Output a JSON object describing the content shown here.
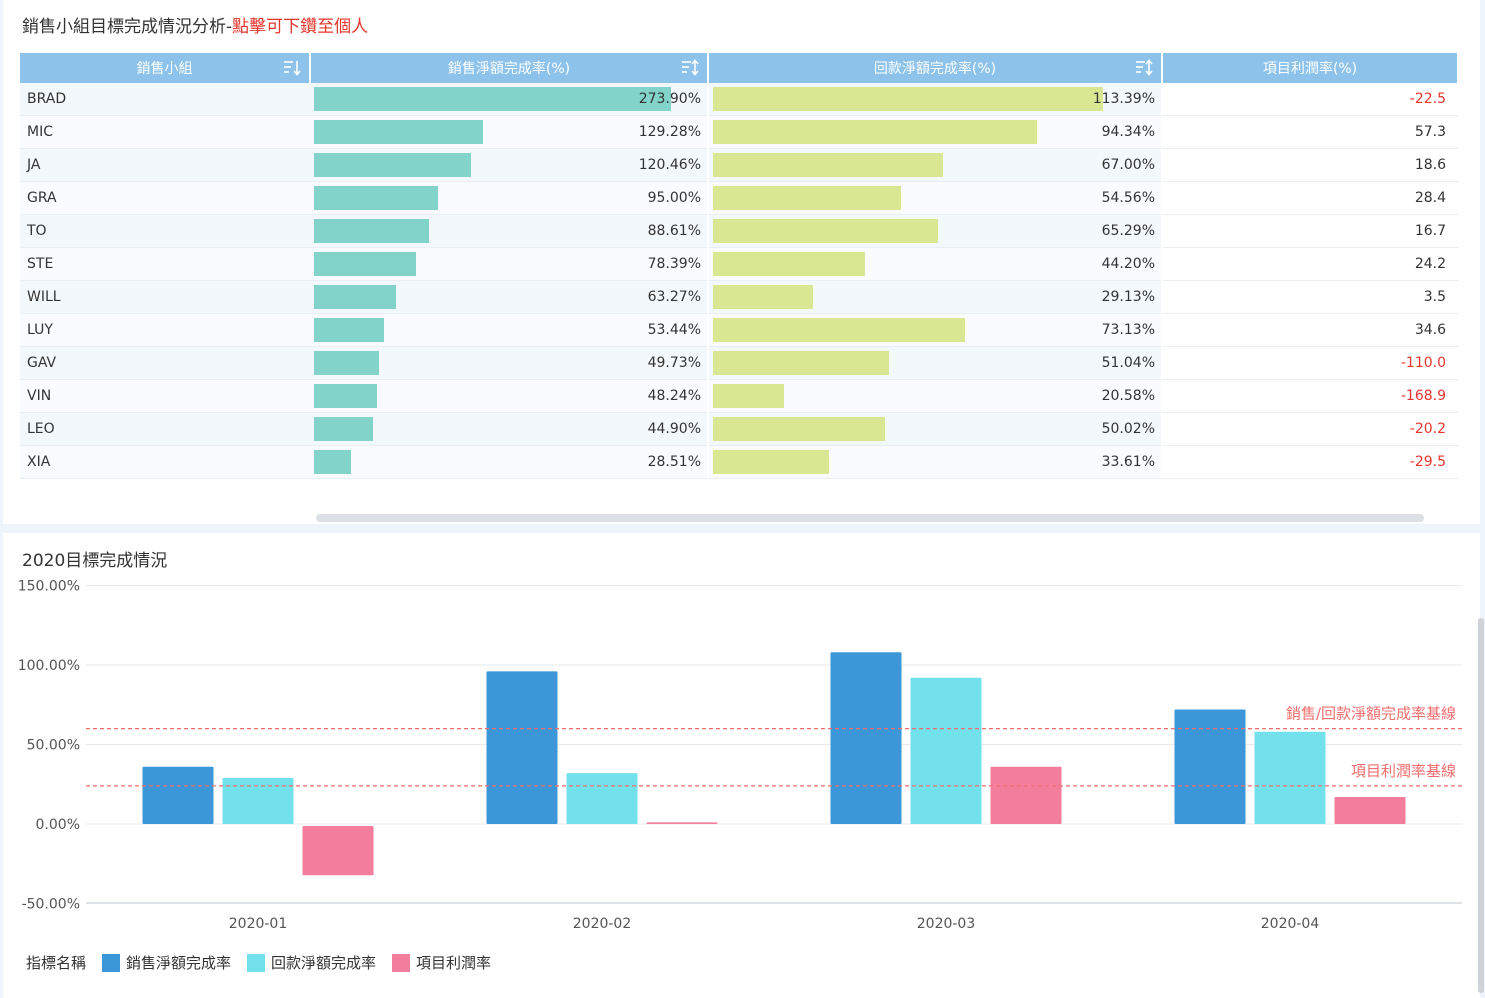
{
  "top_title": {
    "main": "銷售小組目標完成情況分析-",
    "link": "點擊可下鑽至個人"
  },
  "table": {
    "headers": [
      "銷售小組",
      "銷售淨額完成率(%)",
      "回款淨額完成率(%)",
      "項目利潤率(%)"
    ],
    "rows": [
      {
        "name": "BRAD",
        "sales": 273.9,
        "sales_label": "273.90%",
        "payment": 113.39,
        "payment_label": "113.39%",
        "profit": "-22.5"
      },
      {
        "name": "MIC",
        "sales": 129.28,
        "sales_label": "129.28%",
        "payment": 94.34,
        "payment_label": "94.34%",
        "profit": "57.3"
      },
      {
        "name": "JA",
        "sales": 120.46,
        "sales_label": "120.46%",
        "payment": 67.0,
        "payment_label": "67.00%",
        "profit": "18.6"
      },
      {
        "name": "GRA",
        "sales": 95.0,
        "sales_label": "95.00%",
        "payment": 54.56,
        "payment_label": "54.56%",
        "profit": "28.4"
      },
      {
        "name": "TO",
        "sales": 88.61,
        "sales_label": "88.61%",
        "payment": 65.29,
        "payment_label": "65.29%",
        "profit": "16.7"
      },
      {
        "name": "STE",
        "sales": 78.39,
        "sales_label": "78.39%",
        "payment": 44.2,
        "payment_label": "44.20%",
        "profit": "24.2"
      },
      {
        "name": "WILL",
        "sales": 63.27,
        "sales_label": "63.27%",
        "payment": 29.13,
        "payment_label": "29.13%",
        "profit": "3.5"
      },
      {
        "name": "LUY",
        "sales": 53.44,
        "sales_label": "53.44%",
        "payment": 73.13,
        "payment_label": "73.13%",
        "profit": "34.6"
      },
      {
        "name": "GAV",
        "sales": 49.73,
        "sales_label": "49.73%",
        "payment": 51.04,
        "payment_label": "51.04%",
        "profit": "-110.0"
      },
      {
        "name": "VIN",
        "sales": 48.24,
        "sales_label": "48.24%",
        "payment": 20.58,
        "payment_label": "20.58%",
        "profit": "-168.9"
      },
      {
        "name": "LEO",
        "sales": 44.9,
        "sales_label": "44.90%",
        "payment": 50.02,
        "payment_label": "50.02%",
        "profit": "-20.2"
      },
      {
        "name": "XIA",
        "sales": 28.51,
        "sales_label": "28.51%",
        "payment": 33.61,
        "payment_label": "33.61%",
        "profit": "-29.5"
      }
    ],
    "sales_max": 273.9,
    "payment_max": 113.39
  },
  "colors": {
    "header_bg": "#8dc2ea",
    "sales_bar": "#82d4ca",
    "payment_bar": "#d9e793",
    "negative": "#e5352d",
    "series_sales": "#3b97d7",
    "series_payment": "#72e1eb",
    "series_profit": "#f37d9d",
    "baseline": "#f06e6e"
  },
  "chart_title": "2020目標完成情況",
  "chart_data": {
    "type": "bar",
    "title": "2020目標完成情況",
    "categories": [
      "2020-01",
      "2020-02",
      "2020-03",
      "2020-04"
    ],
    "series": [
      {
        "name": "銷售淨額完成率",
        "values": [
          36,
          96,
          108,
          72
        ]
      },
      {
        "name": "回款淨額完成率",
        "values": [
          29,
          32,
          92,
          58
        ]
      },
      {
        "name": "項目利潤率",
        "values": [
          -31,
          1,
          36,
          17
        ]
      }
    ],
    "ylim": [
      -50,
      150
    ],
    "yticks": [
      -50,
      0,
      50,
      100,
      150
    ],
    "ytick_labels": [
      "-50.00%",
      "0.00%",
      "50.00%",
      "100.00%",
      "150.00%"
    ],
    "reference_lines": [
      {
        "label": "銷售/回款淨額完成率基線",
        "value": 60
      },
      {
        "label": "項目利潤率基線",
        "value": 24
      }
    ],
    "legend_title": "指標名稱",
    "legend": [
      "銷售淨額完成率",
      "回款淨額完成率",
      "項目利潤率"
    ],
    "legend_position": "bottom-left"
  }
}
